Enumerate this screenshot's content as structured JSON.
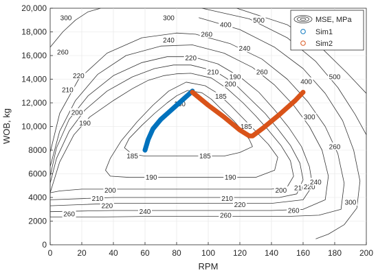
{
  "chart_data": {
    "type": "line",
    "title": "",
    "xlabel": "RPM",
    "ylabel": "WOB, kg",
    "xlim": [
      0,
      200
    ],
    "ylim": [
      0,
      20000
    ],
    "xticks": [
      "0",
      "20",
      "40",
      "60",
      "80",
      "100",
      "120",
      "140",
      "160",
      "180",
      "200"
    ],
    "yticks": [
      "0",
      "2000",
      "4000",
      "6000",
      "8000",
      "10,000",
      "12,000",
      "14,000",
      "16,000",
      "18,000",
      "20,000"
    ],
    "grid": true,
    "legend_position": "top-right",
    "legend": [
      {
        "label": "MSE, MPa",
        "kind": "contour",
        "color": "#333333"
      },
      {
        "label": "Sim1",
        "kind": "marker",
        "color": "#0072BD"
      },
      {
        "label": "Sim2",
        "kind": "marker",
        "color": "#D95319"
      }
    ],
    "series": [
      {
        "name": "Sim1",
        "color": "#0072BD",
        "x": [
          60,
          62,
          65,
          70,
          75,
          80,
          85,
          90
        ],
        "y": [
          8000,
          8900,
          9800,
          10600,
          11200,
          11800,
          12400,
          13000
        ]
      },
      {
        "name": "Sim2",
        "color": "#D95319",
        "x": [
          90,
          100,
          110,
          120,
          126,
          128,
          135,
          145,
          155,
          160
        ],
        "y": [
          12900,
          11800,
          10800,
          9700,
          9200,
          9200,
          9900,
          11000,
          12200,
          12900
        ]
      }
    ],
    "contours": [
      {
        "level": 185,
        "x": [
          87,
          96,
          102,
          108,
          116,
          122,
          126,
          128,
          120,
          110,
          100,
          90,
          80,
          70,
          60,
          52,
          47,
          50,
          58,
          66,
          74,
          80,
          87
        ],
        "y": [
          13050,
          12850,
          12300,
          11500,
          10500,
          9600,
          8900,
          8300,
          7800,
          7500,
          7500,
          7500,
          7500,
          7500,
          7500,
          7650,
          8200,
          9000,
          10100,
          11100,
          12000,
          12600,
          13050
        ]
      },
      {
        "level": 190,
        "x": [
          86,
          98,
          106,
          114,
          122,
          130,
          138,
          144,
          142,
          130,
          110,
          90,
          70,
          50,
          38,
          35,
          38,
          45,
          55,
          65,
          75,
          86
        ],
        "y": [
          13750,
          13450,
          12800,
          11800,
          10700,
          9600,
          8500,
          7400,
          6300,
          5700,
          5700,
          5700,
          5700,
          5700,
          5800,
          6300,
          7300,
          8800,
          10400,
          11800,
          13000,
          13750
        ]
      },
      {
        "level": 200,
        "x": [
          89,
          102,
          112,
          122,
          130,
          138,
          146,
          152,
          154,
          150,
          140,
          120,
          100,
          80,
          60,
          40,
          20,
          6,
          0,
          0,
          6,
          15,
          25,
          40,
          52,
          62,
          72,
          80,
          89
        ],
        "y": [
          14500,
          14100,
          13200,
          12000,
          10900,
          9700,
          8400,
          7100,
          5800,
          4900,
          4700,
          4700,
          4700,
          4700,
          4700,
          4700,
          4700,
          4550,
          4400,
          4400,
          7000,
          9300,
          10800,
          12200,
          13200,
          13900,
          14300,
          14450,
          14500
        ]
      },
      {
        "level": 210,
        "x": [
          89,
          104,
          116,
          126,
          136,
          144,
          152,
          158,
          160,
          156,
          145,
          120,
          100,
          80,
          60,
          40,
          20,
          0,
          0,
          4,
          12,
          22,
          36,
          52,
          66,
          78,
          89
        ],
        "y": [
          15200,
          14700,
          13700,
          12400,
          11100,
          9800,
          8400,
          6900,
          5500,
          4300,
          4000,
          4000,
          4000,
          4000,
          4000,
          4000,
          3900,
          3800,
          5200,
          7300,
          9600,
          11400,
          13000,
          14200,
          14900,
          15200,
          15200
        ]
      },
      {
        "level": 220,
        "x": [
          90,
          106,
          120,
          132,
          142,
          151,
          159,
          164,
          166,
          160,
          140,
          120,
          100,
          80,
          60,
          40,
          20,
          0,
          0,
          4,
          12,
          24,
          40,
          58,
          74,
          90
        ],
        "y": [
          15900,
          15300,
          14200,
          12900,
          11400,
          9900,
          8300,
          6600,
          5000,
          3800,
          3500,
          3500,
          3500,
          3500,
          3500,
          3500,
          3400,
          3300,
          5800,
          8200,
          10600,
          12600,
          14300,
          15400,
          15900,
          15900
        ]
      },
      {
        "level": 240,
        "x": [
          90,
          110,
          128,
          142,
          154,
          164,
          172,
          176,
          174,
          160,
          140,
          120,
          100,
          80,
          60,
          40,
          20,
          0,
          0,
          6,
          16,
          30,
          48,
          70,
          90
        ],
        "y": [
          16900,
          16200,
          15000,
          13500,
          11800,
          10000,
          8000,
          5800,
          3800,
          3000,
          2900,
          2900,
          2900,
          2900,
          2900,
          2900,
          2850,
          2800,
          6600,
          9600,
          12200,
          14400,
          16000,
          16800,
          16900
        ]
      },
      {
        "level": 260,
        "x": [
          92,
          114,
          134,
          150,
          163,
          174,
          182,
          186,
          184,
          170,
          150,
          120,
          90,
          60,
          30,
          0,
          0,
          6,
          18,
          36,
          58,
          80,
          92
        ],
        "y": [
          17800,
          17000,
          15700,
          14000,
          12100,
          10000,
          7700,
          5200,
          3000,
          2500,
          2400,
          2400,
          2400,
          2400,
          2350,
          2350,
          7800,
          11100,
          14000,
          16200,
          17500,
          17900,
          17800
        ]
      },
      {
        "level": 300,
        "x": [
          94,
          120,
          142,
          160,
          174,
          185,
          192,
          196,
          194,
          186,
          176,
          168
        ],
        "y": [
          19200,
          18200,
          16700,
          14900,
          12800,
          10500,
          8000,
          5400,
          3100,
          1700,
          900,
          500
        ]
      },
      {
        "level": 300,
        "x": [
          0,
          8,
          16,
          24,
          32
        ],
        "y": [
          16700,
          18000,
          19000,
          19700,
          20000
        ]
      },
      {
        "level": 400,
        "x": [
          96,
          126,
          150,
          168,
          182,
          193,
          200
        ],
        "y": [
          20000,
          19100,
          17500,
          15500,
          13300,
          11000,
          9300
        ]
      },
      {
        "level": 500,
        "x": [
          118,
          150,
          172,
          188,
          200
        ],
        "y": [
          20000,
          18600,
          16600,
          14500,
          12800
        ]
      }
    ],
    "contour_labels": [
      {
        "text": "185",
        "x": 108,
        "y": 12550
      },
      {
        "text": "180",
        "x": 82,
        "y": 11900
      },
      {
        "text": "185",
        "x": 124,
        "y": 10000
      },
      {
        "text": "185",
        "x": 52,
        "y": 7500
      },
      {
        "text": "185",
        "x": 98,
        "y": 7500
      },
      {
        "text": "190",
        "x": 117,
        "y": 14200
      },
      {
        "text": "190",
        "x": 22,
        "y": 10300
      },
      {
        "text": "190",
        "x": 64,
        "y": 5700
      },
      {
        "text": "190",
        "x": 114,
        "y": 5700
      },
      {
        "text": "200",
        "x": 114,
        "y": 13600
      },
      {
        "text": "200",
        "x": 17,
        "y": 11200
      },
      {
        "text": "200",
        "x": 38,
        "y": 4600
      },
      {
        "text": "200",
        "x": 146,
        "y": 4600
      },
      {
        "text": "210",
        "x": 103,
        "y": 14600
      },
      {
        "text": "210",
        "x": 11,
        "y": 13100
      },
      {
        "text": "210",
        "x": 30,
        "y": 3900
      },
      {
        "text": "210",
        "x": 112,
        "y": 3900
      },
      {
        "text": "210",
        "x": 158,
        "y": 4800
      },
      {
        "text": "220",
        "x": 89,
        "y": 15800
      },
      {
        "text": "220",
        "x": 18,
        "y": 14300
      },
      {
        "text": "220",
        "x": 36,
        "y": 3300
      },
      {
        "text": "220",
        "x": 120,
        "y": 3400
      },
      {
        "text": "220",
        "x": 164,
        "y": 4900
      },
      {
        "text": "240",
        "x": 75,
        "y": 17300
      },
      {
        "text": "240",
        "x": 123,
        "y": 16600
      },
      {
        "text": "240",
        "x": 60,
        "y": 2800
      },
      {
        "text": "240",
        "x": 168,
        "y": 5300
      },
      {
        "text": "260",
        "x": 99,
        "y": 17800
      },
      {
        "text": "260",
        "x": 8,
        "y": 16300
      },
      {
        "text": "260",
        "x": 134,
        "y": 14600
      },
      {
        "text": "260",
        "x": 12,
        "y": 2600
      },
      {
        "text": "260",
        "x": 111,
        "y": 2500
      },
      {
        "text": "260",
        "x": 154,
        "y": 2900
      },
      {
        "text": "260",
        "x": 180,
        "y": 8300
      },
      {
        "text": "300",
        "x": 10,
        "y": 19200
      },
      {
        "text": "300",
        "x": 75,
        "y": 19200
      },
      {
        "text": "300",
        "x": 164,
        "y": 10800
      },
      {
        "text": "300",
        "x": 190,
        "y": 3600
      },
      {
        "text": "400",
        "x": 111,
        "y": 18600
      },
      {
        "text": "400",
        "x": 162,
        "y": 13800
      },
      {
        "text": "500",
        "x": 132,
        "y": 19000
      },
      {
        "text": "500",
        "x": 180,
        "y": 14200
      }
    ]
  }
}
